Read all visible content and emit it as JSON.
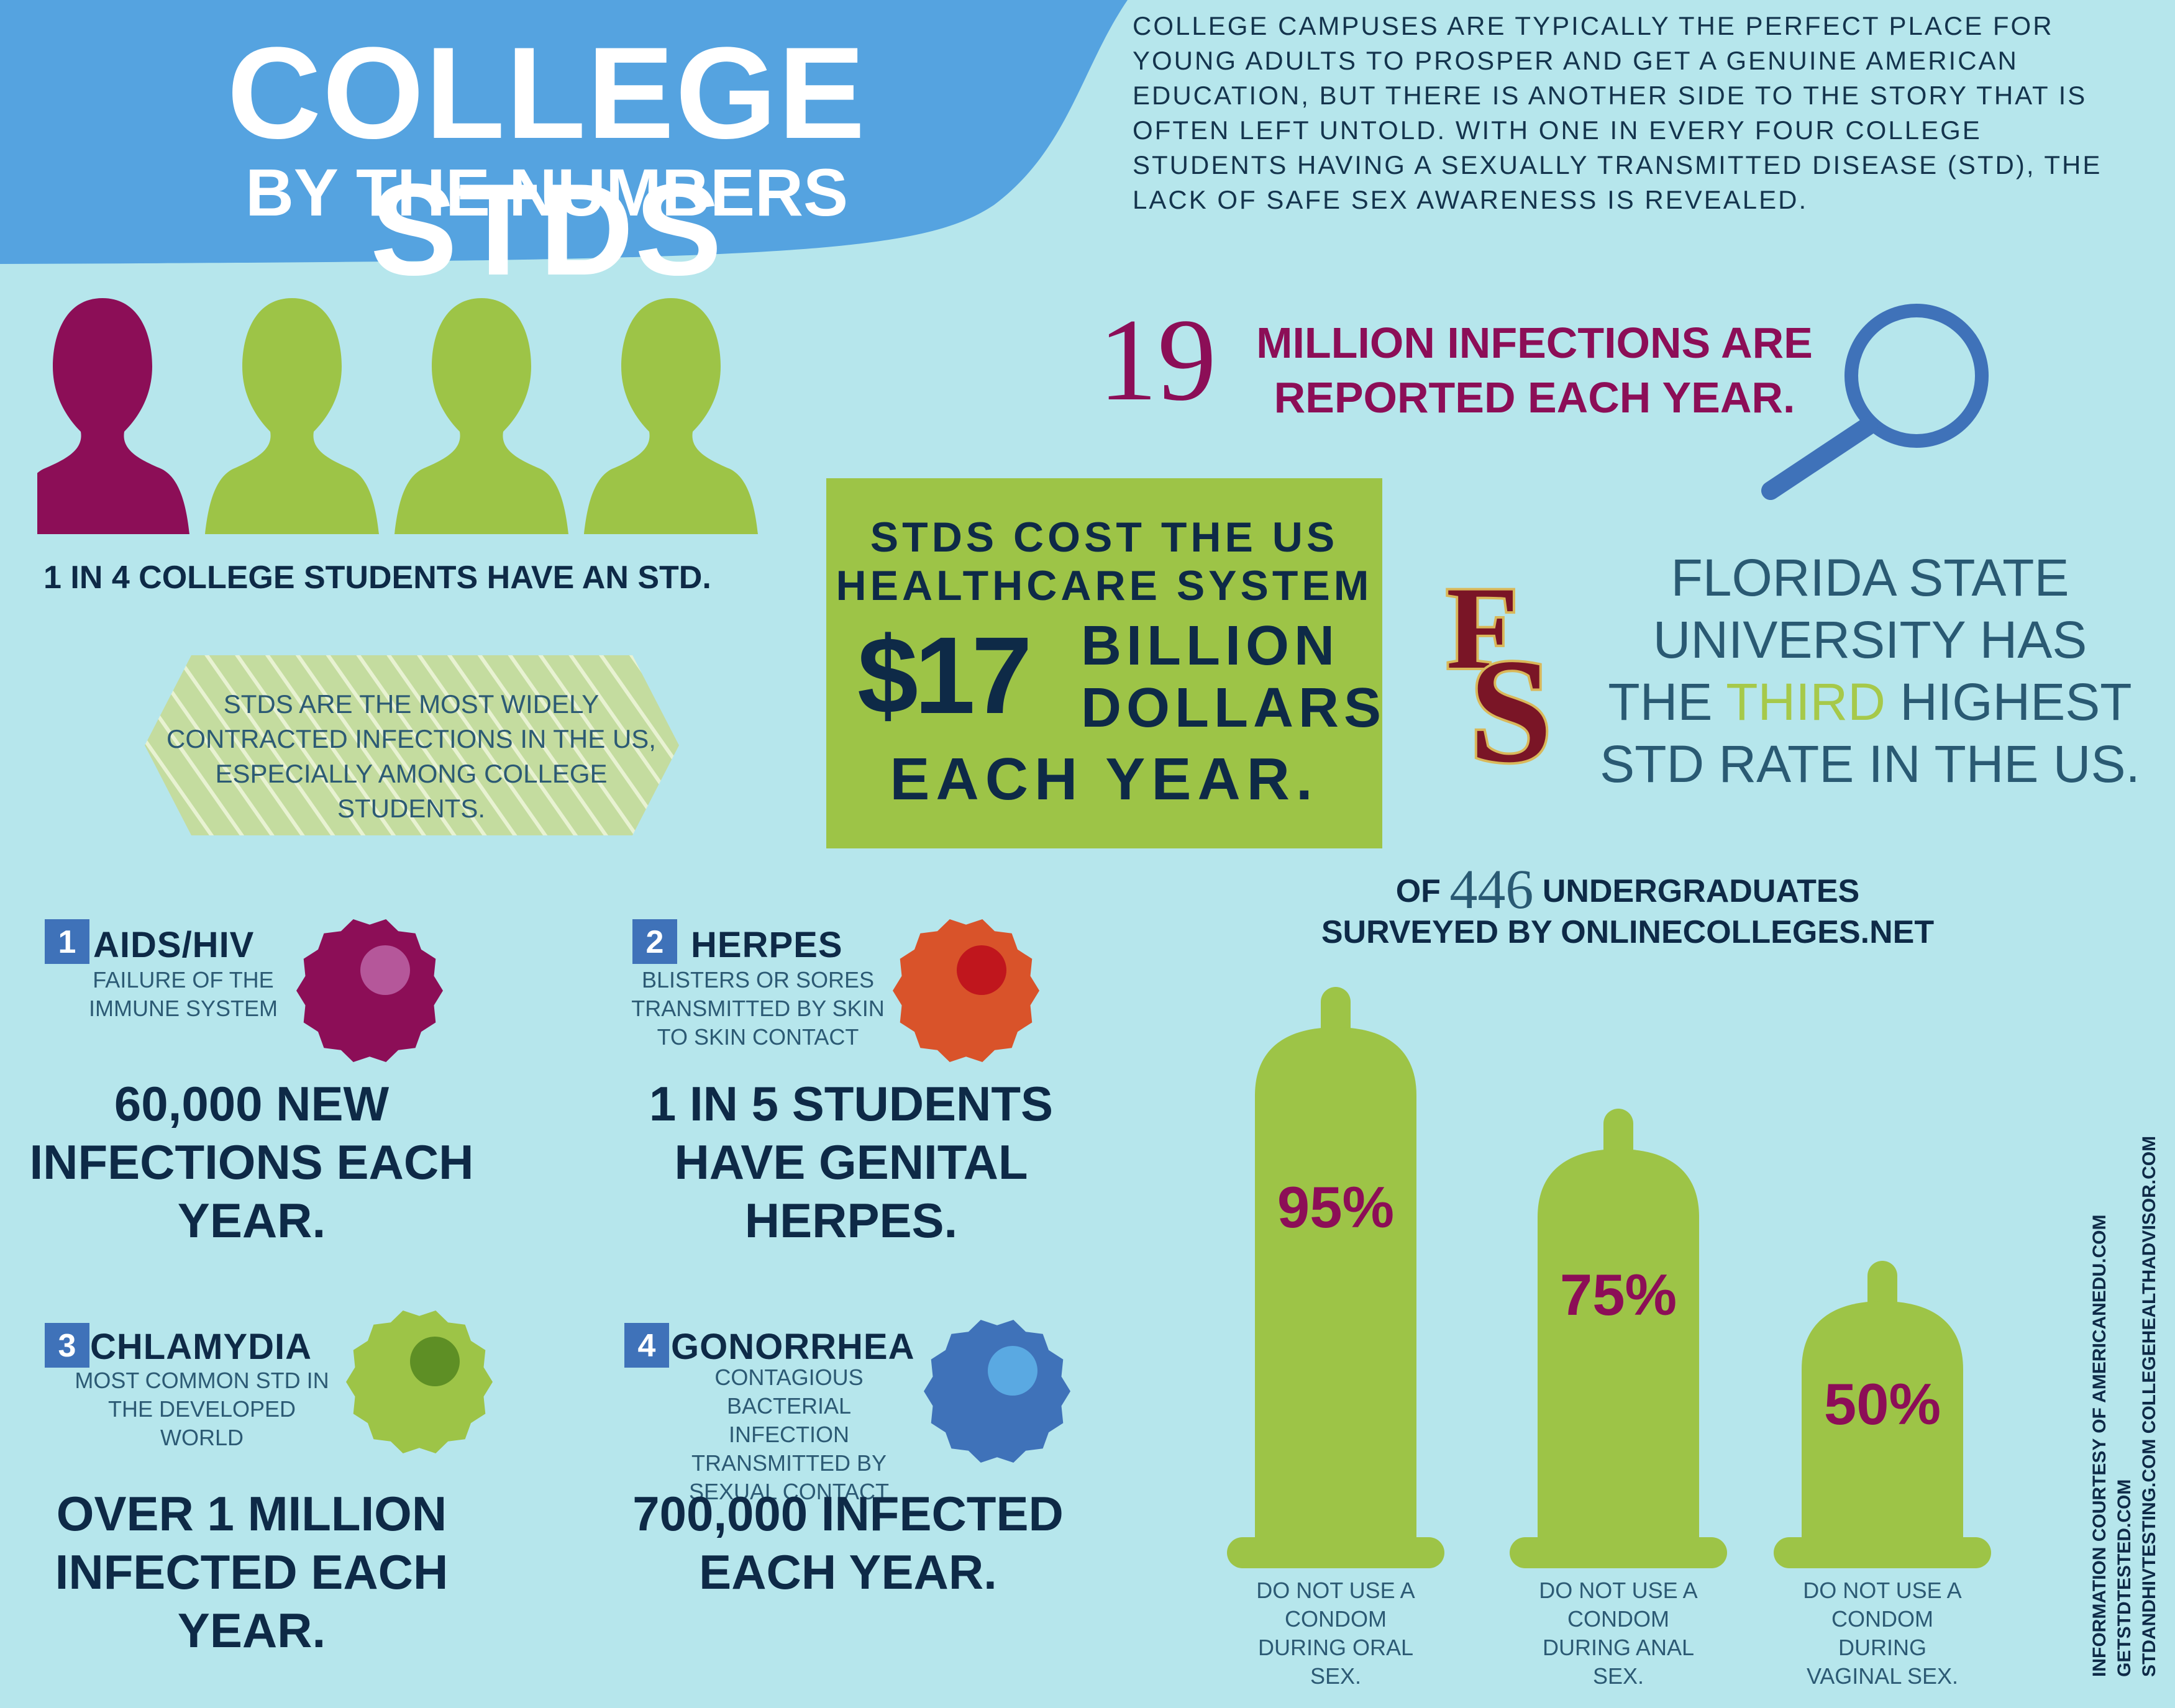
{
  "header": {
    "title": "COLLEGE STDS",
    "subtitle": "BY THE NUMBERS"
  },
  "intro": "College campuses are typically the perfect place for young adults to prosper and get a genuine American education, but there is another side to the story that is often left untold. With one in every four college students having a sexually transmitted disease (STD), the lack of safe sex awareness is revealed.",
  "ratio_stat": {
    "caption": "1 IN 4 COLLEGE STUDENTS HAVE AN STD.",
    "highlighted_figures": 1,
    "total_figures": 4
  },
  "badge": {
    "text": "STDS ARE THE MOST WIDELY CONTRACTED INFECTIONS IN THE US, ESPECIALLY AMONG COLLEGE STUDENTS."
  },
  "cost": {
    "line1": "STDS COST THE US",
    "line2": "HEALTHCARE SYSTEM",
    "amount": "$17",
    "unit_line1": "BILLION",
    "unit_line2": "DOLLARS",
    "line3": "EACH YEAR."
  },
  "reported": {
    "number": "19",
    "line1": "MILLION INFECTIONS ARE",
    "line2": "REPORTED EACH YEAR."
  },
  "fsu": {
    "logo_icon": "fs-monogram-icon",
    "text_before": "FLORIDA STATE UNIVERSITY HAS THE",
    "highlight": "THIRD",
    "text_after": "HIGHEST STD RATE IN THE US."
  },
  "diseases": [
    {
      "number": "1",
      "name": "AIDS/HIV",
      "desc": "FAILURE OF THE IMMUNE SYSTEM",
      "stat": "60,000 NEW INFECTIONS EACH YEAR.",
      "color": "#8c0e57",
      "dot": "#b5579a"
    },
    {
      "number": "2",
      "name": "HERPES",
      "desc": "BLISTERS OR SORES TRANSMITTED  BY SKIN TO SKIN CONTACT",
      "stat": "1 IN 5 STUDENTS HAVE GENITAL HERPES.",
      "color": "#d9532a",
      "dot": "#c0161d"
    },
    {
      "number": "3",
      "name": "CHLAMYDIA",
      "desc": "MOST COMMON STD IN THE DEVELOPED WORLD",
      "stat": "OVER 1 MILLION INFECTED EACH YEAR.",
      "color": "#9dc447",
      "dot": "#5e8f25"
    },
    {
      "number": "4",
      "name": "GONORRHEA",
      "desc": "CONTAGIOUS BACTERIAL INFECTION TRANSMITTED BY SEXUAL CONTACT",
      "stat": "700,000 INFECTED EACH YEAR.",
      "color": "#3f72b9",
      "dot": "#5aa9e2"
    }
  ],
  "survey": {
    "prefix": "OF",
    "count": "446",
    "line1_suffix": "UNDERGRADUATES",
    "line2": "SURVEYED BY ONLINECOLLEGES.NET"
  },
  "chart_data": {
    "type": "bar",
    "categories": [
      "DO NOT USE A CONDOM DURING ORAL SEX.",
      "DO NOT USE A CONDOM DURING ANAL SEX.",
      "DO NOT USE A CONDOM DURING VAGINAL SEX."
    ],
    "values": [
      95,
      75,
      50
    ],
    "data_labels": [
      "95%",
      "75%",
      "50%"
    ],
    "unit": "%",
    "ylim": [
      0,
      100
    ],
    "bar_color": "#9dc447",
    "label_color": "#8c0e57"
  },
  "credits": {
    "line1": "INFORMATION COURTESY OF AMERICANEDU.COM GETSTDTESTED.COM",
    "line2": "STDANDHIVTESTING.COM COLLEGEHEALTHADVISOR.COM"
  },
  "colors": {
    "background": "#b6e6ec",
    "header_blue": "#55a3e0",
    "maroon": "#8c0e57",
    "green": "#9dc447",
    "navy": "#0e2a47"
  }
}
